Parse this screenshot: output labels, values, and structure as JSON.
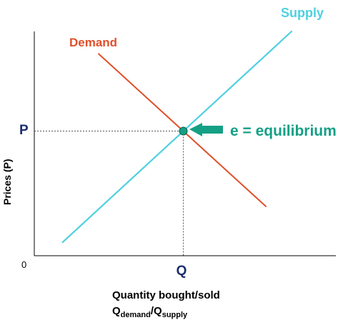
{
  "chart_data": {
    "type": "line",
    "title": "",
    "xlabel": "Quantity bought/sold",
    "xlabel_line2": {
      "q1": "Q",
      "q1_sub": "demand",
      "sep": "/Q",
      "q2_sub": "supply"
    },
    "ylabel": "Prices (P)",
    "origin_label": "0",
    "equilibrium": {
      "price_label": "P",
      "quantity_label": "Q",
      "annotation": "e = equilibrium"
    },
    "series": [
      {
        "name": "Supply",
        "x": [
          0.11,
          1.0
        ],
        "y": [
          0.06,
          1.0
        ]
      },
      {
        "name": "Demand",
        "x": [
          0.25,
          0.9
        ],
        "y": [
          0.9,
          0.22
        ]
      }
    ],
    "xlim": [
      0,
      1
    ],
    "ylim": [
      0,
      1
    ],
    "grid": false,
    "legend": "inline labels"
  },
  "colors": {
    "supply": "#4fd0e0",
    "demand": "#e0502a",
    "equilibrium_point": "#14a085",
    "arrow": "#14a085",
    "axis": "#000000",
    "guide": "#555555"
  }
}
